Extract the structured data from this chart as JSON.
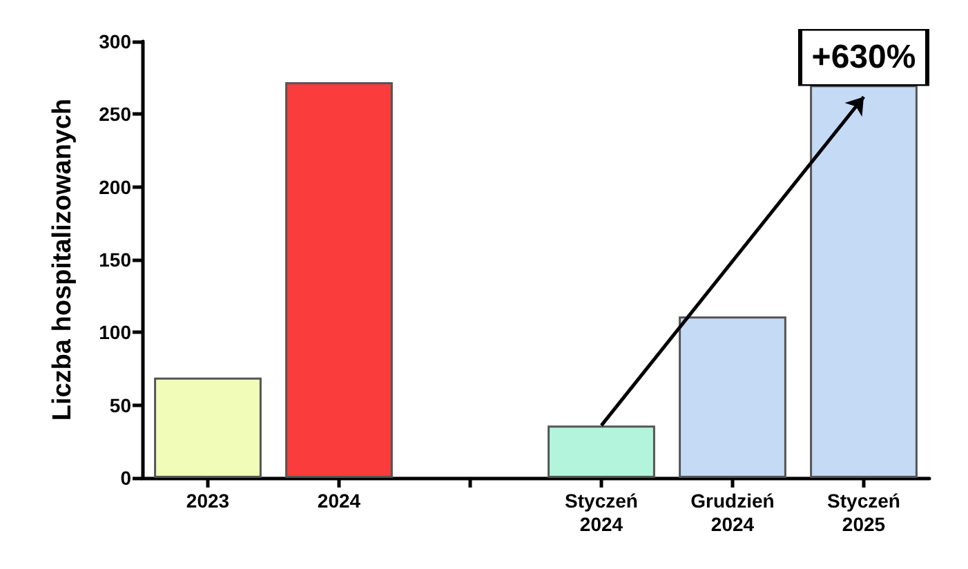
{
  "chart_data": {
    "type": "bar",
    "ylabel": "Liczba hospitalizowanych",
    "categories": [
      "2023",
      "2024",
      null,
      "Styczeń\n2024",
      "Grudzień\n2024",
      "Styczeń\n2025"
    ],
    "values": [
      69,
      272,
      null,
      36,
      111,
      270
    ],
    "colors": [
      "#f0fcb8",
      "#fa3c3c",
      null,
      "#b3f5dc",
      "#c4daf5",
      "#c4daf5"
    ],
    "ylim": [
      0,
      300
    ],
    "yticks": [
      0,
      50,
      100,
      150,
      200,
      250,
      300
    ],
    "grid": false,
    "annotations": [
      {
        "text": "+630%",
        "x": "Styczeń\n2025",
        "y": 270
      }
    ]
  }
}
